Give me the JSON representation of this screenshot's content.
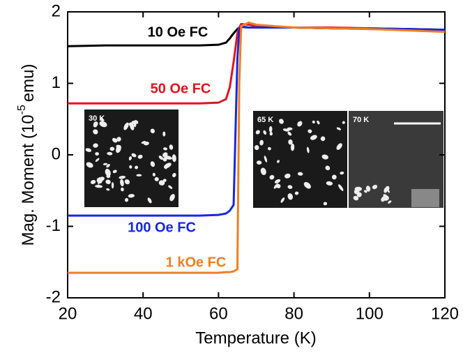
{
  "chart_data": {
    "type": "line",
    "xlabel": "Temperature (K)",
    "ylabel_parts": [
      "Mag. Moment (10",
      "-5",
      "emu)"
    ],
    "x": [
      20,
      30,
      40,
      50,
      55,
      60,
      62,
      63,
      64,
      65,
      65.5,
      66,
      68,
      70,
      80,
      90,
      100,
      110,
      120
    ],
    "series": [
      {
        "name": "10 Oe FC",
        "color": "#000000",
        "values": [
          1.52,
          1.53,
          1.53,
          1.53,
          1.53,
          1.54,
          1.57,
          1.63,
          1.7,
          1.76,
          1.78,
          1.79,
          1.78,
          1.78,
          1.78,
          1.77,
          1.77,
          1.76,
          1.75
        ]
      },
      {
        "name": "50 Oe FC",
        "color": "#e0141e",
        "values": [
          0.72,
          0.72,
          0.72,
          0.72,
          0.72,
          0.73,
          0.78,
          0.95,
          1.3,
          1.7,
          1.78,
          1.83,
          1.82,
          1.8,
          1.78,
          1.78,
          1.77,
          1.76,
          1.73
        ]
      },
      {
        "name": "100 Oe FC",
        "color": "#1428e0",
        "values": [
          -0.85,
          -0.85,
          -0.85,
          -0.85,
          -0.85,
          -0.84,
          -0.82,
          -0.78,
          -0.7,
          1.35,
          1.75,
          1.8,
          1.78,
          1.78,
          1.78,
          1.77,
          1.76,
          1.76,
          1.75
        ]
      },
      {
        "name": "1 kOe FC",
        "color": "#f07f1e",
        "values": [
          -1.65,
          -1.65,
          -1.65,
          -1.65,
          -1.65,
          -1.65,
          -1.64,
          -1.64,
          -1.63,
          -1.6,
          1.0,
          1.8,
          1.85,
          1.82,
          1.78,
          1.77,
          1.76,
          1.74,
          1.72
        ]
      }
    ],
    "inset_labels": [
      "30 K",
      "65 K",
      "70 K"
    ],
    "xlim": [
      20,
      120
    ],
    "xticks": [
      20,
      40,
      60,
      80,
      100,
      120
    ],
    "ylim": [
      -2,
      2
    ],
    "yticks": [
      -2,
      -1,
      0,
      1,
      2
    ]
  }
}
